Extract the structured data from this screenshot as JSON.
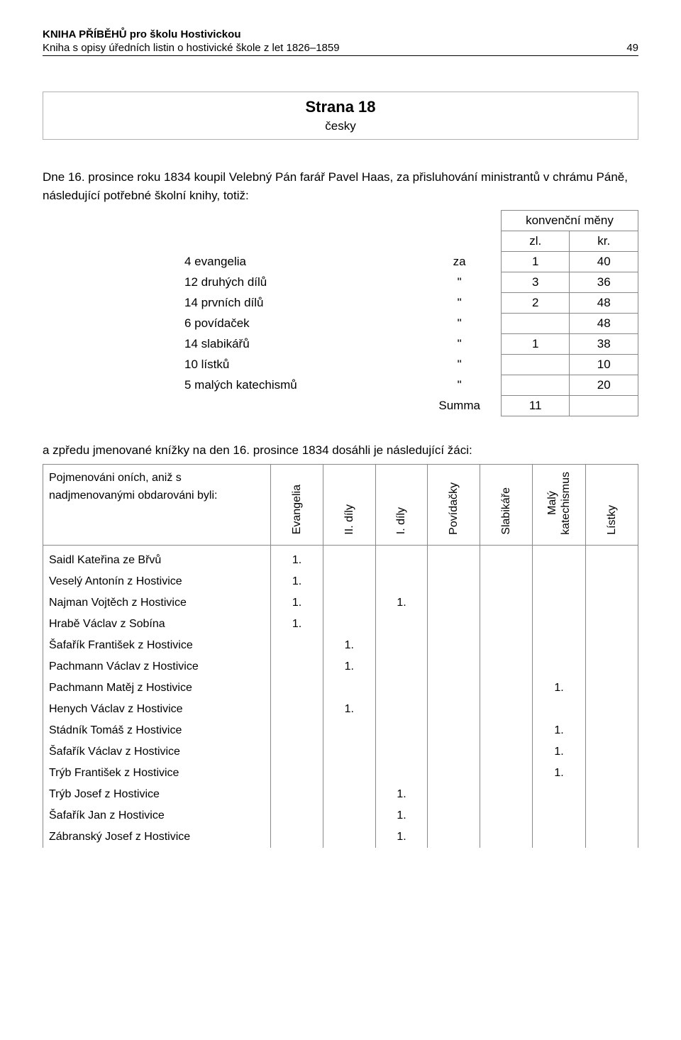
{
  "header": {
    "title": "KNIHA PŘÍBĚHŮ pro školu Hostivickou",
    "subtitle": "Kniha s opisy úředních listin o hostivické škole z let 1826–1859",
    "page_number": "49"
  },
  "section": {
    "title": "Strana 18",
    "subtitle": "česky"
  },
  "intro": "Dne 16. prosince roku 1834 koupil Velebný Pán farář Pavel Haas, za přisluhování ministrantů v chrámu Páně, následující potřebné školní knihy, totiž:",
  "currency_table": {
    "header_top": "konvenční měny",
    "col_zl": "zl.",
    "col_kr": "kr.",
    "rows": [
      {
        "label": "4 evangelia",
        "word": "za",
        "zl": "1",
        "kr": "40"
      },
      {
        "label": "12 druhých dílů",
        "word": "\"",
        "zl": "3",
        "kr": "36"
      },
      {
        "label": "14 prvních dílů",
        "word": "\"",
        "zl": "2",
        "kr": "48"
      },
      {
        "label": "6 povídaček",
        "word": "\"",
        "zl": "",
        "kr": "48"
      },
      {
        "label": "14 slabikářů",
        "word": "\"",
        "zl": "1",
        "kr": "38"
      },
      {
        "label": "10 lístků",
        "word": "\"",
        "zl": "",
        "kr": "10"
      },
      {
        "label": "5 malých katechismů",
        "word": "\"",
        "zl": "",
        "kr": "20"
      },
      {
        "label": "",
        "word": "Summa",
        "zl": "11",
        "kr": ""
      }
    ]
  },
  "para2": "a zpředu jmenované knížky na den 16. prosince 1834 dosáhli je následující žáci:",
  "students_table": {
    "name_header": "Pojmenováni oních, aniž s nadjmenovanými obdarováni byli:",
    "columns": [
      "Evangelia",
      "II. díly",
      "I. díly",
      "Povídačky",
      "Slabikáře",
      "Malý\nkatechismus",
      "Lístky"
    ],
    "rows": [
      {
        "name": "Saidl Kateřina ze Břvů",
        "v": [
          "1.",
          "",
          "",
          "",
          "",
          "",
          ""
        ]
      },
      {
        "name": "Veselý Antonín z Hostivice",
        "v": [
          "1.",
          "",
          "",
          "",
          "",
          "",
          ""
        ]
      },
      {
        "name": "Najman Vojtěch z Hostivice",
        "v": [
          "1.",
          "",
          "1.",
          "",
          "",
          "",
          ""
        ]
      },
      {
        "name": "Hrabě Václav z Sobína",
        "v": [
          "1.",
          "",
          "",
          "",
          "",
          "",
          ""
        ]
      },
      {
        "name": "Šafařík František z Hostivice",
        "v": [
          "",
          "1.",
          "",
          "",
          "",
          "",
          ""
        ]
      },
      {
        "name": "Pachmann Václav z Hostivice",
        "v": [
          "",
          "1.",
          "",
          "",
          "",
          "",
          ""
        ]
      },
      {
        "name": "Pachmann Matěj z Hostivice",
        "v": [
          "",
          "",
          "",
          "",
          "",
          "1.",
          ""
        ]
      },
      {
        "name": "Henych Václav z Hostivice",
        "v": [
          "",
          "1.",
          "",
          "",
          "",
          "",
          ""
        ]
      },
      {
        "name": "Stádník Tomáš z Hostivice",
        "v": [
          "",
          "",
          "",
          "",
          "",
          "1.",
          ""
        ]
      },
      {
        "name": "Šafařík Václav z Hostivice",
        "v": [
          "",
          "",
          "",
          "",
          "",
          "1.",
          ""
        ]
      },
      {
        "name": "Trýb František z Hostivice",
        "v": [
          "",
          "",
          "",
          "",
          "",
          "1.",
          ""
        ]
      },
      {
        "name": "Trýb Josef z Hostivice",
        "v": [
          "",
          "",
          "1.",
          "",
          "",
          "",
          ""
        ]
      },
      {
        "name": "Šafařík Jan z Hostivice",
        "v": [
          "",
          "",
          "1.",
          "",
          "",
          "",
          ""
        ]
      },
      {
        "name": "Zábranský Josef z Hostivice",
        "v": [
          "",
          "",
          "1.",
          "",
          "",
          "",
          ""
        ]
      }
    ]
  }
}
